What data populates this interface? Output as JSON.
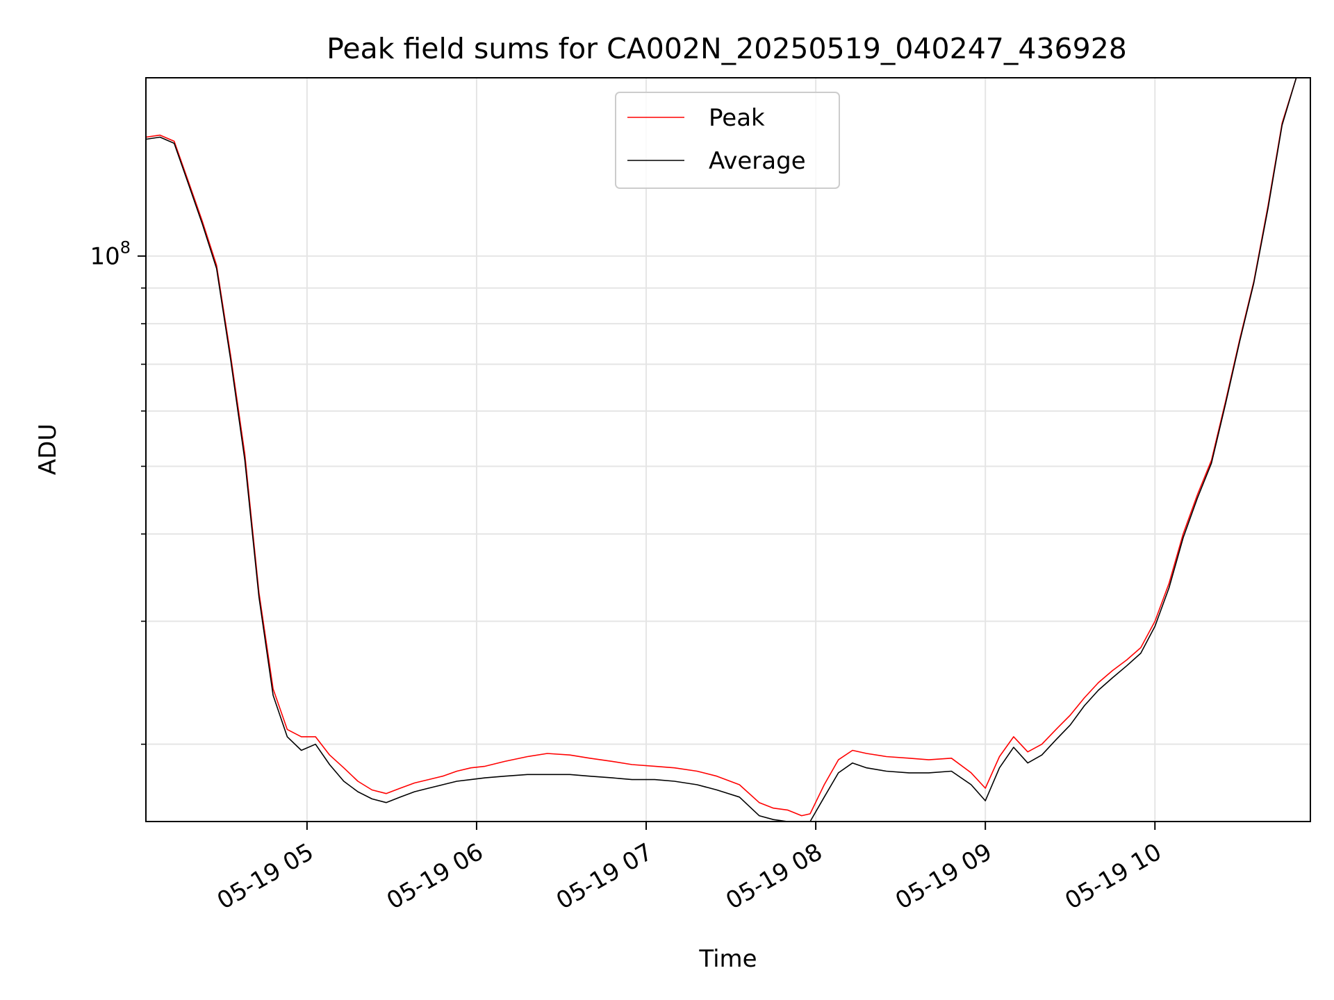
{
  "chart_data": {
    "type": "line",
    "title": "Peak field sums for CA002N_20250519_040247_436928",
    "xlabel": "Time",
    "ylabel": "ADU",
    "y_scale": "log",
    "ylim": [
      15500000,
      180000000
    ],
    "xlim": [
      "2025-05-19 04:03",
      "2025-05-19 10:55"
    ],
    "grid": true,
    "legend": {
      "placement": "upper center"
    },
    "x_ticks": [
      {
        "value": "2025-05-19 05:00",
        "label": "05-19 05"
      },
      {
        "value": "2025-05-19 06:00",
        "label": "05-19 06"
      },
      {
        "value": "2025-05-19 07:00",
        "label": "05-19 07"
      },
      {
        "value": "2025-05-19 08:00",
        "label": "05-19 08"
      },
      {
        "value": "2025-05-19 09:00",
        "label": "05-19 09"
      },
      {
        "value": "2025-05-19 10:00",
        "label": "05-19 10"
      }
    ],
    "y_major_ticks": [
      {
        "value": 100000000,
        "label_base": "10",
        "label_exp": "8"
      }
    ],
    "y_minor_ticks": [
      20000000,
      30000000,
      40000000,
      50000000,
      60000000,
      70000000,
      80000000,
      90000000
    ],
    "series": [
      {
        "name": "Peak",
        "color": "#ff0000",
        "x": [
          "04:03",
          "04:08",
          "04:13",
          "04:18",
          "04:23",
          "04:28",
          "04:33",
          "04:38",
          "04:43",
          "04:48",
          "04:53",
          "04:58",
          "05:03",
          "05:08",
          "05:13",
          "05:18",
          "05:23",
          "05:28",
          "05:33",
          "05:38",
          "05:43",
          "05:48",
          "05:53",
          "05:58",
          "06:03",
          "06:10",
          "06:18",
          "06:25",
          "06:33",
          "06:40",
          "06:48",
          "06:55",
          "07:03",
          "07:10",
          "07:18",
          "07:25",
          "07:33",
          "07:40",
          "07:45",
          "07:50",
          "07:55",
          "07:58",
          "08:03",
          "08:08",
          "08:13",
          "08:18",
          "08:25",
          "08:33",
          "08:40",
          "08:48",
          "08:55",
          "09:00",
          "09:05",
          "09:10",
          "09:15",
          "09:20",
          "09:25",
          "09:30",
          "09:35",
          "09:40",
          "09:45",
          "09:50",
          "09:55",
          "10:00",
          "10:05",
          "10:10",
          "10:15",
          "10:20",
          "10:25",
          "10:30",
          "10:35",
          "10:40",
          "10:45",
          "10:50"
        ],
        "values": [
          148000000,
          149000000,
          146000000,
          128000000,
          112000000,
          97000000,
          72000000,
          52000000,
          33000000,
          24000000,
          21000000,
          20500000,
          20500000,
          19300000,
          18500000,
          17700000,
          17200000,
          17000000,
          17300000,
          17600000,
          17800000,
          18000000,
          18300000,
          18500000,
          18600000,
          18900000,
          19200000,
          19400000,
          19300000,
          19100000,
          18900000,
          18700000,
          18600000,
          18500000,
          18300000,
          18000000,
          17500000,
          16500000,
          16200000,
          16100000,
          15800000,
          15900000,
          17500000,
          19000000,
          19600000,
          19400000,
          19200000,
          19100000,
          19000000,
          19100000,
          18200000,
          17300000,
          19200000,
          20500000,
          19500000,
          20000000,
          21000000,
          22000000,
          23300000,
          24500000,
          25500000,
          26400000,
          27500000,
          30000000,
          34000000,
          40000000,
          45500000,
          51000000,
          62000000,
          76000000,
          92000000,
          118000000,
          155000000,
          180000000
        ]
      },
      {
        "name": "Average",
        "color": "#000000",
        "x": [
          "04:03",
          "04:08",
          "04:13",
          "04:18",
          "04:23",
          "04:28",
          "04:33",
          "04:38",
          "04:43",
          "04:48",
          "04:53",
          "04:58",
          "05:03",
          "05:08",
          "05:13",
          "05:18",
          "05:23",
          "05:28",
          "05:33",
          "05:38",
          "05:43",
          "05:48",
          "05:53",
          "05:58",
          "06:03",
          "06:10",
          "06:18",
          "06:25",
          "06:33",
          "06:40",
          "06:48",
          "06:55",
          "07:03",
          "07:10",
          "07:18",
          "07:25",
          "07:33",
          "07:40",
          "07:45",
          "07:50",
          "07:55",
          "07:58",
          "08:03",
          "08:08",
          "08:13",
          "08:18",
          "08:25",
          "08:33",
          "08:40",
          "08:48",
          "08:55",
          "09:00",
          "09:05",
          "09:10",
          "09:15",
          "09:20",
          "09:25",
          "09:30",
          "09:35",
          "09:40",
          "09:45",
          "09:50",
          "09:55",
          "10:00",
          "10:05",
          "10:10",
          "10:15",
          "10:20",
          "10:25",
          "10:30",
          "10:35",
          "10:40",
          "10:45",
          "10:50"
        ],
        "values": [
          147000000,
          148000000,
          145000000,
          127000000,
          111000000,
          96000000,
          71000000,
          51000000,
          32500000,
          23500000,
          20500000,
          19600000,
          20000000,
          18700000,
          17700000,
          17100000,
          16700000,
          16500000,
          16800000,
          17100000,
          17300000,
          17500000,
          17700000,
          17800000,
          17900000,
          18000000,
          18100000,
          18100000,
          18100000,
          18000000,
          17900000,
          17800000,
          17800000,
          17700000,
          17500000,
          17200000,
          16800000,
          15800000,
          15600000,
          15500000,
          15300000,
          15400000,
          16800000,
          18200000,
          18800000,
          18500000,
          18300000,
          18200000,
          18200000,
          18300000,
          17500000,
          16600000,
          18500000,
          19800000,
          18800000,
          19300000,
          20300000,
          21300000,
          22700000,
          23900000,
          24900000,
          25900000,
          27000000,
          29500000,
          33500000,
          39500000,
          45000000,
          50500000,
          61500000,
          75500000,
          91500000,
          117000000,
          154000000,
          180000000
        ]
      }
    ]
  }
}
